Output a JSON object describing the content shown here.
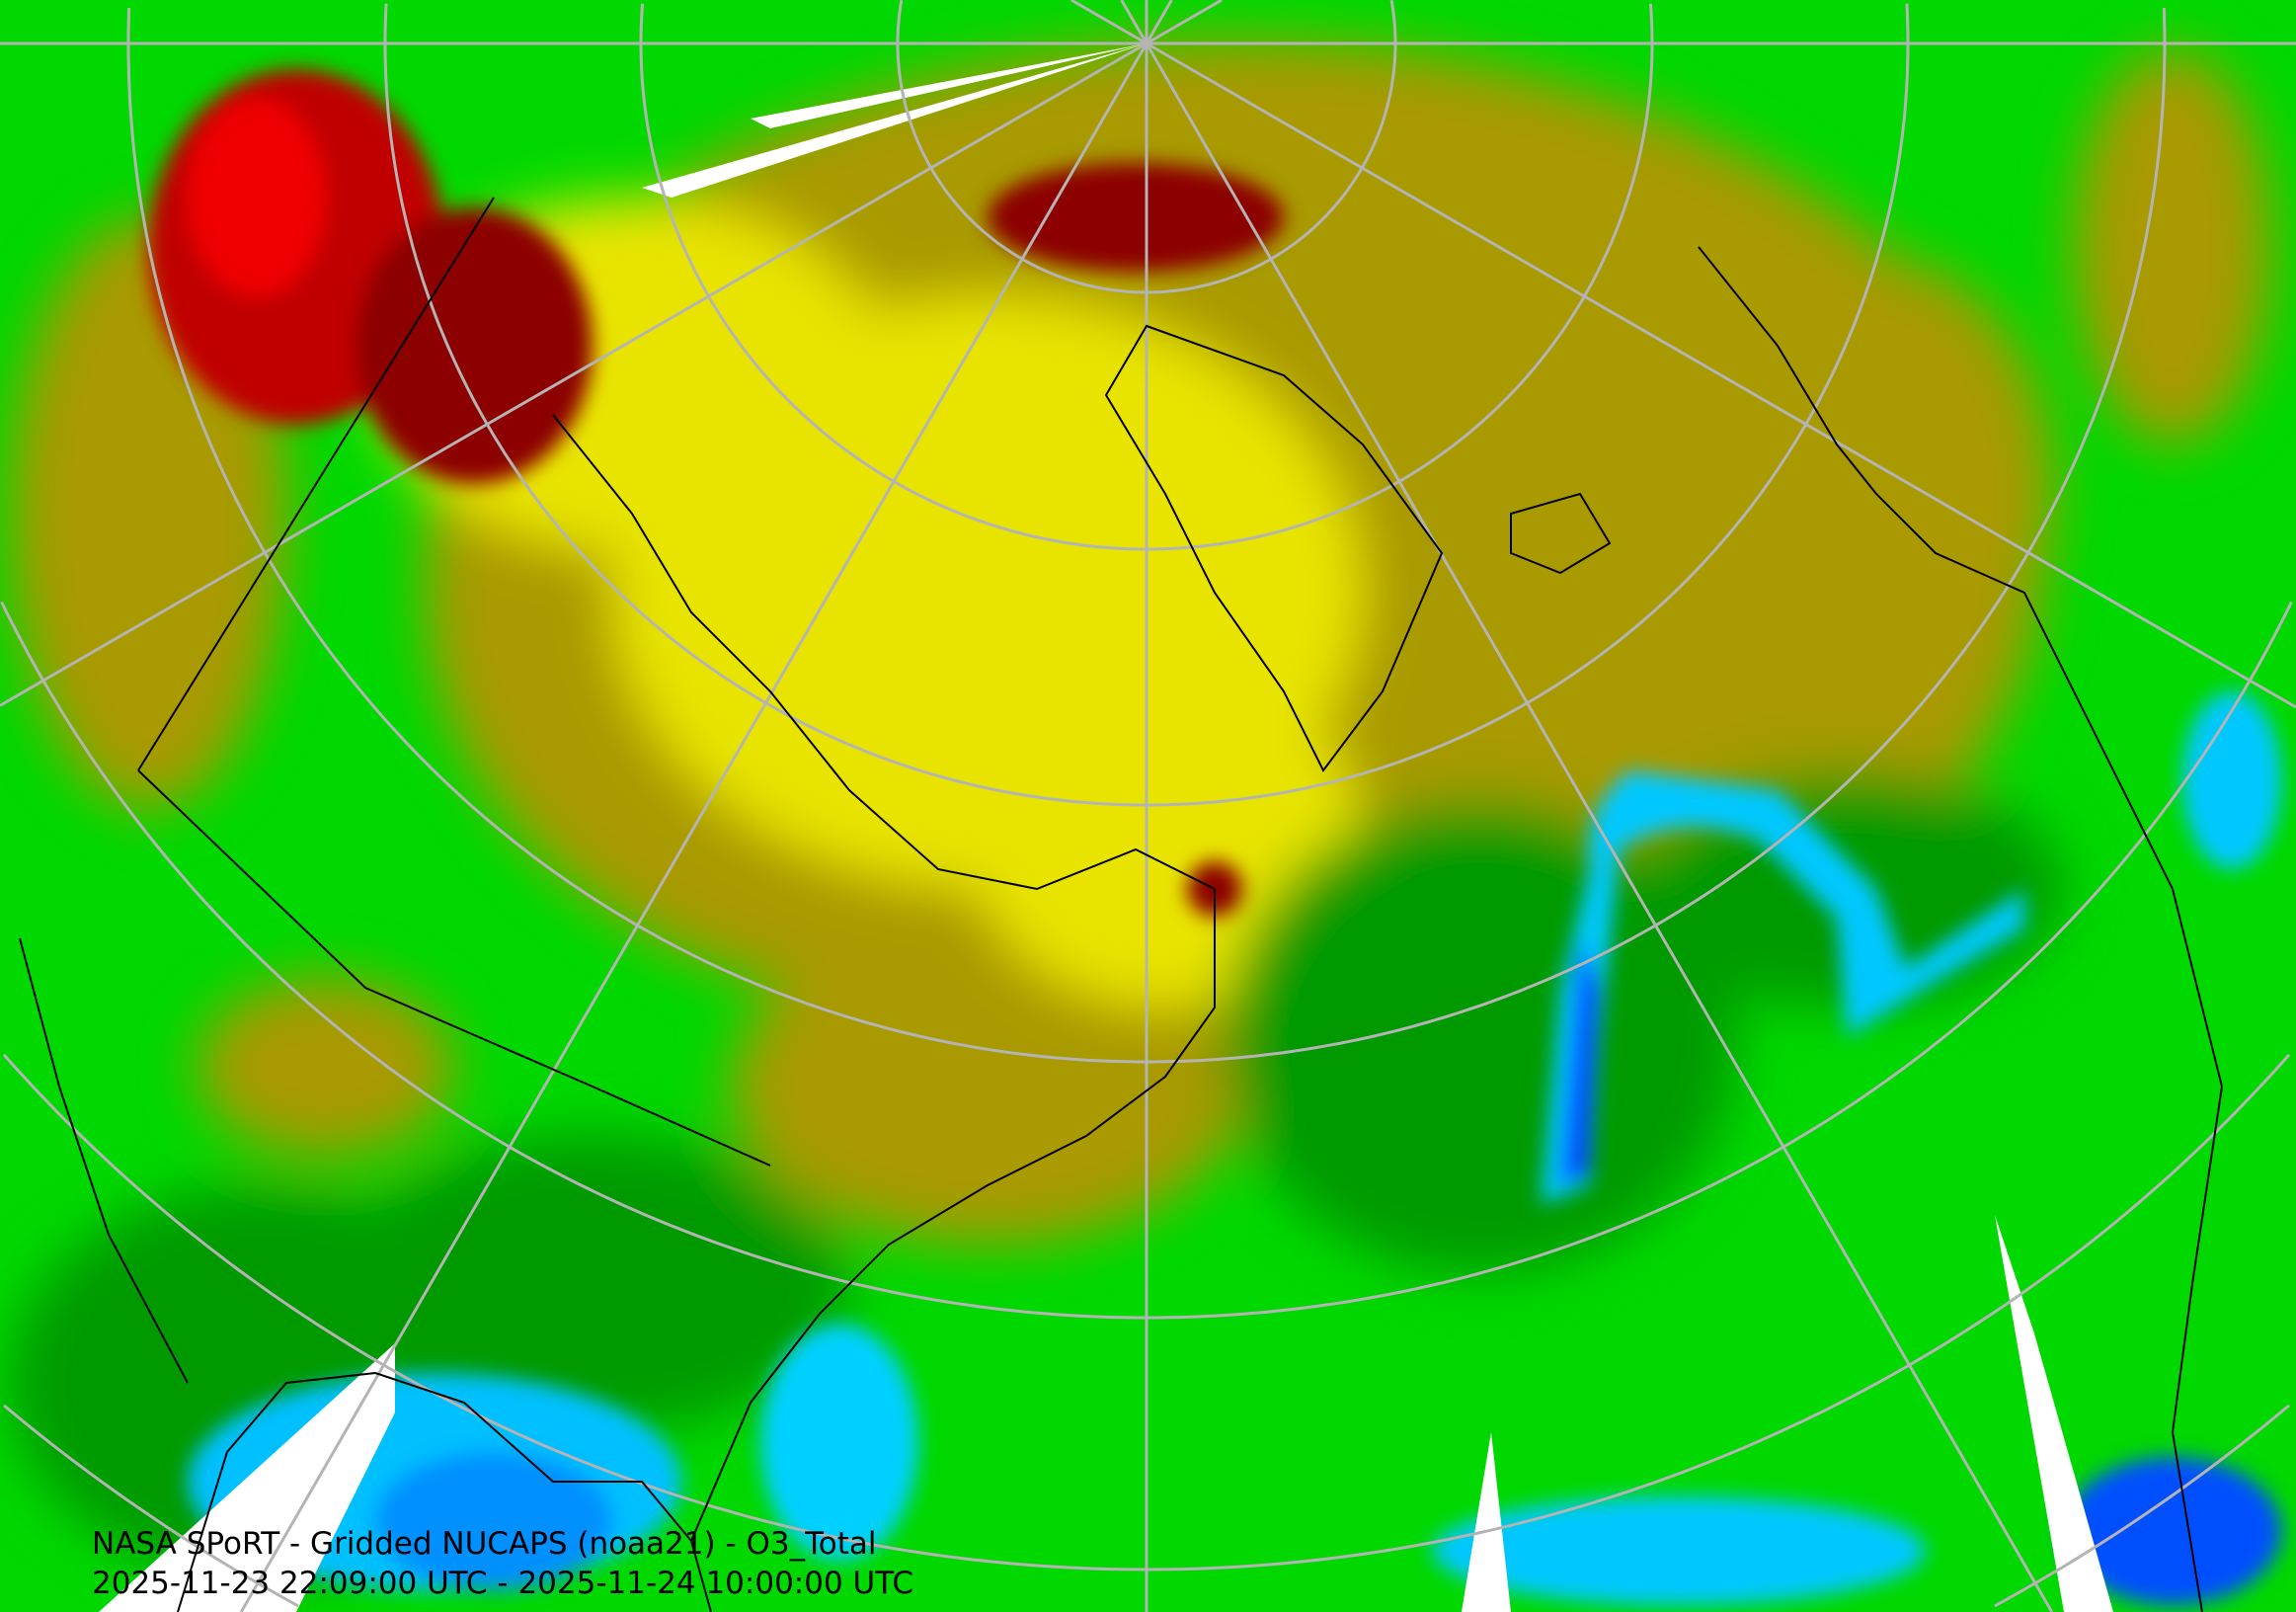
{
  "title": "NASA SPoRT - Gridded NUCAPS (noaa21) - O3_Total",
  "time_range": "2025-11-23 22:09:00 UTC - 2025-11-24 10:00:00 UTC",
  "colors": {
    "background_green": "#00d800",
    "dark_green": "#009000",
    "olive": "#a89a00",
    "yellow": "#f0f000",
    "dark_red": "#990000",
    "red": "#e00000",
    "cyan": "#00d0ff",
    "blue": "#0050ff",
    "no_data": "#ffffff",
    "graticule": "#b4b4b4",
    "borders": "#000000"
  }
}
